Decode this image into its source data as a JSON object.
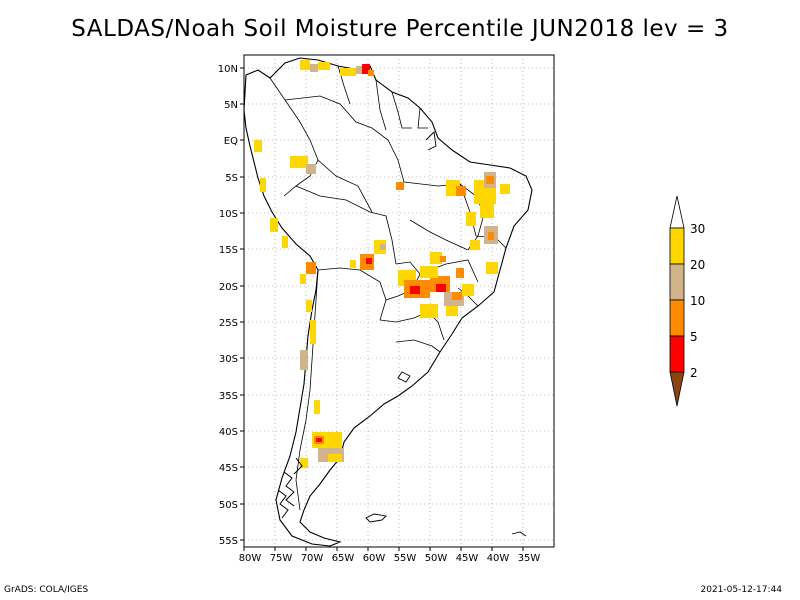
{
  "title": "SALDAS/Noah Soil Moisture Percentile JUN2018 lev = 3",
  "footer": {
    "left": "GrADS: COLA/IGES",
    "right": "2021-05-12-17:44"
  },
  "map": {
    "lon_ticks": [
      "80W",
      "75W",
      "70W",
      "65W",
      "60W",
      "55W",
      "50W",
      "45W",
      "40W",
      "35W"
    ],
    "lat_ticks": [
      "10N",
      "5N",
      "EQ",
      "5S",
      "10S",
      "15S",
      "20S",
      "25S",
      "30S",
      "35S",
      "40S",
      "45S",
      "50S",
      "55S"
    ]
  },
  "legend": {
    "labels": [
      "30",
      "20",
      "10",
      "5",
      "2"
    ],
    "colors": {
      "top_arrow": "#ffffff",
      "p20_30": "#ffd700",
      "p10_20": "#d2b48c",
      "p5_10": "#ff8c00",
      "p2_5": "#ff0000",
      "lt2": "#8b4513"
    }
  }
}
